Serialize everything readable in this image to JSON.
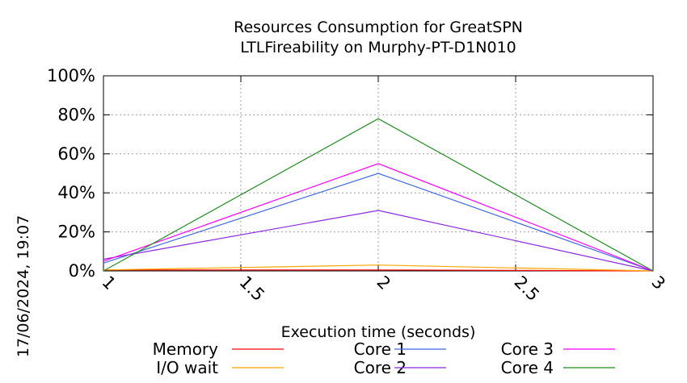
{
  "chart_data": {
    "type": "line",
    "title_lines": [
      "Resources Consumption for GreatSPN",
      "LTLFireability on Murphy-PT-D1N010"
    ],
    "xlabel": "Execution time (seconds)",
    "ylabel": "",
    "xlim": [
      1,
      3
    ],
    "ylim": [
      0,
      100
    ],
    "x_ticks": [
      1,
      1.5,
      2,
      2.5,
      3
    ],
    "x_tick_labels": [
      "1",
      "1.5",
      "2",
      "2.5",
      "3"
    ],
    "y_ticks": [
      0,
      20,
      40,
      60,
      80,
      100
    ],
    "y_tick_labels": [
      "0%",
      "20%",
      "40%",
      "60%",
      "80%",
      "100%"
    ],
    "grid": true,
    "legend_position": "bottom",
    "timestamp": "17/06/2024, 19:07",
    "series": [
      {
        "name": "Memory",
        "color": "#ff0000",
        "x": [
          1,
          2,
          3
        ],
        "y": [
          0.5,
          0.5,
          0
        ]
      },
      {
        "name": "I/O wait",
        "color": "#ffa500",
        "x": [
          1,
          2,
          3
        ],
        "y": [
          0.5,
          3,
          0
        ]
      },
      {
        "name": "Core 1",
        "color": "#4169e1",
        "x": [
          1,
          2,
          3
        ],
        "y": [
          4,
          50,
          0
        ]
      },
      {
        "name": "Core 2",
        "color": "#8a2be2",
        "x": [
          1,
          2,
          3
        ],
        "y": [
          6,
          31,
          0
        ]
      },
      {
        "name": "Core 3",
        "color": "#ff00ff",
        "x": [
          1,
          2,
          3
        ],
        "y": [
          5,
          55,
          0
        ]
      },
      {
        "name": "Core 4",
        "color": "#228b22",
        "x": [
          1,
          2,
          3
        ],
        "y": [
          0,
          78,
          0
        ]
      }
    ]
  }
}
